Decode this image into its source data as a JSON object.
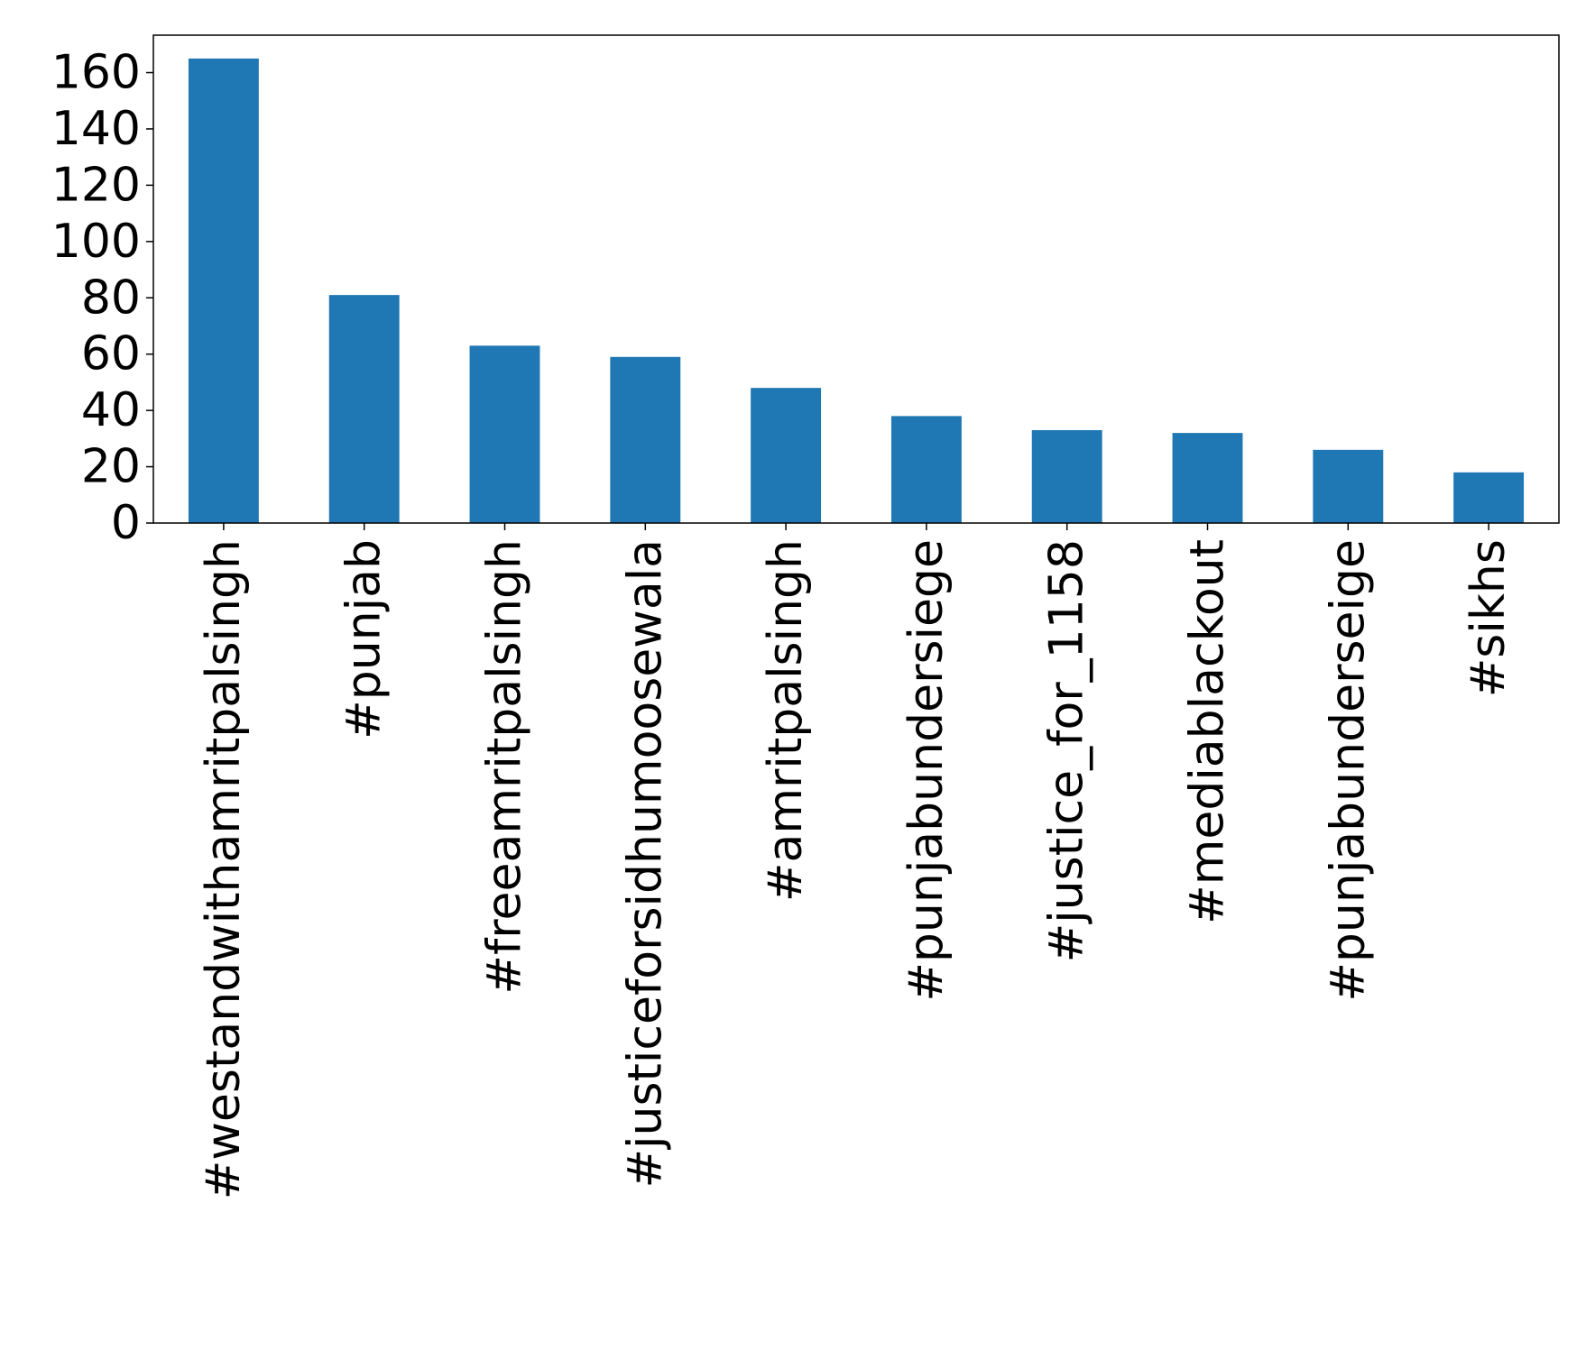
{
  "chart_data": {
    "type": "bar",
    "categories": [
      "#westandwithamritpalsingh",
      "#punjab",
      "#freeamritpalsingh",
      "#justiceforsidhumoosewala",
      "#amritpalsingh",
      "#punjabundersiege",
      "#justice_for_1158",
      "#mediablackout",
      "#punjabunderseige",
      "#sikhs"
    ],
    "values": [
      165,
      81,
      63,
      59,
      48,
      38,
      33,
      32,
      26,
      18
    ],
    "color": "#1f77b4",
    "ylim": [
      0,
      173.3
    ],
    "yticks": [
      0,
      20,
      40,
      60,
      80,
      100,
      120,
      140,
      160
    ],
    "grid": false
  }
}
